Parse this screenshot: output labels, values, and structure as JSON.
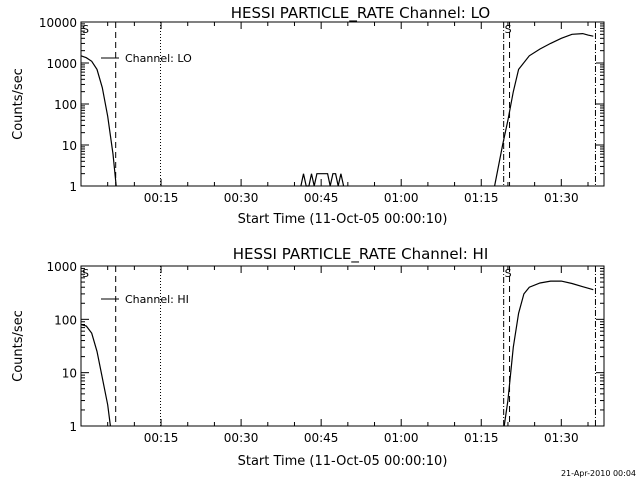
{
  "footer": {
    "timestamp": "21-Apr-2010 00:04"
  },
  "colors": {
    "background": "#ffffff",
    "foreground": "#000000"
  },
  "chart_data": [
    {
      "type": "line",
      "title": "HESSI PARTICLE_RATE Channel: LO",
      "xlabel": "Start Time (11-Oct-05 00:00:10)",
      "ylabel": "Counts/sec",
      "y_scale": "log",
      "xlim_minutes": [
        0,
        98
      ],
      "ylim": [
        1,
        10000
      ],
      "x_tick_minutes": [
        15,
        30,
        45,
        60,
        75,
        90
      ],
      "x_tick_labels": [
        "00:15",
        "00:30",
        "00:45",
        "01:00",
        "01:15",
        "01:30"
      ],
      "y_ticks": [
        1,
        10,
        100,
        1000,
        10000
      ],
      "y_tick_labels": [
        "1",
        "10",
        "100",
        "1000",
        "10000"
      ],
      "legend": {
        "label": "Channel: LO",
        "position": "top-left"
      },
      "corner_marks": {
        "left": "S",
        "right": "S"
      },
      "markers": [
        {
          "x": 6.5,
          "style": "dashed"
        },
        {
          "x": 14.9,
          "style": "dotted"
        },
        {
          "x": 79.2,
          "style": "dash-dot"
        },
        {
          "x": 80.3,
          "style": "dashed"
        },
        {
          "x": 96.4,
          "style": "dash-dot"
        }
      ],
      "series": [
        {
          "segments": [
            [
              [
                0,
                1500
              ],
              [
                1,
                1350
              ],
              [
                2,
                1100
              ],
              [
                3,
                700
              ],
              [
                4,
                250
              ],
              [
                5,
                50
              ],
              [
                6,
                6
              ],
              [
                6.6,
                1
              ]
            ],
            [
              [
                41.2,
                1
              ],
              [
                41.7,
                2
              ],
              [
                42.2,
                1
              ],
              [
                42.7,
                1
              ],
              [
                43.2,
                2
              ],
              [
                43.7,
                1
              ],
              [
                44.2,
                2
              ],
              [
                46.2,
                2
              ],
              [
                46.7,
                1
              ],
              [
                47.2,
                2
              ],
              [
                47.7,
                2
              ],
              [
                48.2,
                1
              ],
              [
                48.7,
                2
              ],
              [
                49.2,
                1
              ]
            ],
            [
              [
                77.5,
                1
              ],
              [
                79,
                10
              ],
              [
                80,
                40
              ],
              [
                81,
                200
              ],
              [
                82,
                700
              ],
              [
                84,
                1500
              ],
              [
                86,
                2200
              ],
              [
                88,
                3000
              ],
              [
                90,
                4000
              ],
              [
                92,
                5000
              ],
              [
                94,
                5200
              ],
              [
                95,
                4800
              ],
              [
                96,
                4500
              ]
            ]
          ]
        }
      ]
    },
    {
      "type": "line",
      "title": "HESSI PARTICLE_RATE Channel: HI",
      "xlabel": "Start Time (11-Oct-05 00:00:10)",
      "ylabel": "Counts/sec",
      "y_scale": "log",
      "xlim_minutes": [
        0,
        98
      ],
      "ylim": [
        1,
        1000
      ],
      "x_tick_minutes": [
        15,
        30,
        45,
        60,
        75,
        90
      ],
      "x_tick_labels": [
        "00:15",
        "00:30",
        "00:45",
        "01:00",
        "01:15",
        "01:30"
      ],
      "y_ticks": [
        1,
        10,
        100,
        1000
      ],
      "y_tick_labels": [
        "1",
        "10",
        "100",
        "1000"
      ],
      "legend": {
        "label": "Channel: HI",
        "position": "top-left"
      },
      "corner_marks": {
        "left": "S",
        "right": "S"
      },
      "markers": [
        {
          "x": 6.5,
          "style": "dashed"
        },
        {
          "x": 14.9,
          "style": "dotted"
        },
        {
          "x": 79.2,
          "style": "dash-dot"
        },
        {
          "x": 80.3,
          "style": "dashed"
        },
        {
          "x": 96.4,
          "style": "dash-dot"
        }
      ],
      "series": [
        {
          "segments": [
            [
              [
                0,
                80
              ],
              [
                1,
                75
              ],
              [
                2,
                55
              ],
              [
                3,
                25
              ],
              [
                4,
                8
              ],
              [
                5,
                2.5
              ],
              [
                5.5,
                1
              ]
            ],
            [
              [
                79.3,
                1
              ],
              [
                80,
                3
              ],
              [
                81,
                30
              ],
              [
                82,
                130
              ],
              [
                83,
                300
              ],
              [
                84,
                400
              ],
              [
                86,
                480
              ],
              [
                88,
                520
              ],
              [
                90,
                520
              ],
              [
                92,
                470
              ],
              [
                94,
                410
              ],
              [
                96,
                360
              ]
            ]
          ]
        }
      ]
    }
  ]
}
